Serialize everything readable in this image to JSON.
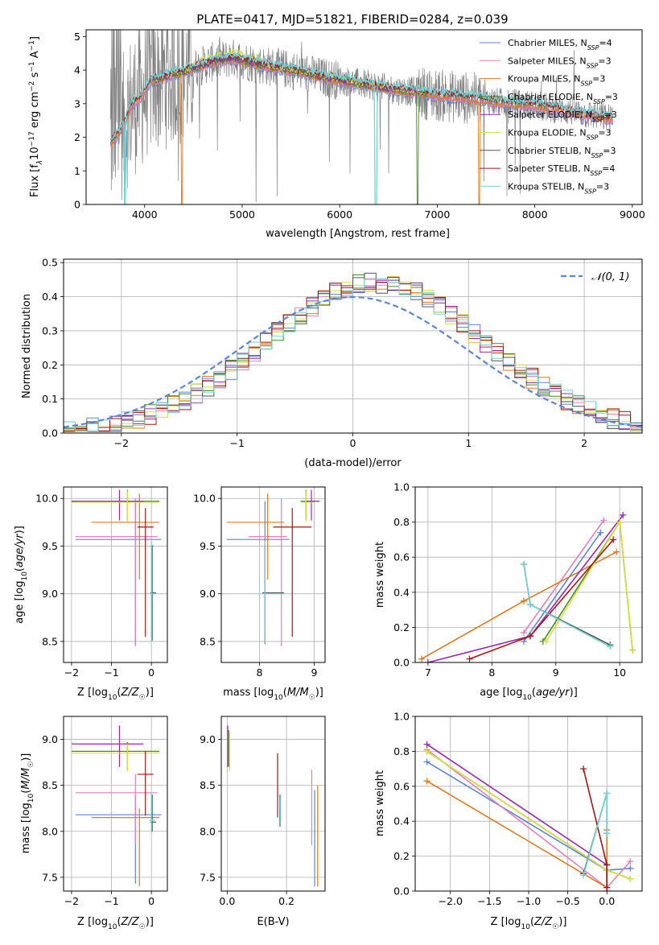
{
  "title": "PLATE=0417, MJD=51821, FIBERID=0284, z=0.039",
  "colors": {
    "Chabrier MILES": "#5b86d6",
    "Salpeter MILES": "#e57fbf",
    "Kroupa MILES": "#de7a1f",
    "Chabrier ELODIE": "#3f8f22",
    "Salpeter ELODIE": "#9b25b3",
    "Kroupa ELODIE": "#d8e03c",
    "Chabrier STELIB": "#555555",
    "Salpeter STELIB": "#a81515",
    "Kroupa STELIB": "#72d4d8",
    "data": "#808080",
    "gaussian": "#5b86d6"
  },
  "chart_data": [
    {
      "id": "spectrum",
      "type": "line",
      "xlabel": "wavelength [Angstrom, rest frame]",
      "ylabel_parts": [
        "Flux [f",
        "λ",
        "10",
        "−17",
        " erg cm",
        "−2",
        " s",
        "−1",
        " A",
        "−1",
        "]"
      ],
      "xlim": [
        3400,
        9100
      ],
      "ylim": [
        0,
        5.2
      ],
      "xticks": [
        4000,
        5000,
        6000,
        7000,
        8000,
        9000
      ],
      "yticks": [
        0,
        1,
        2,
        3,
        4,
        5
      ],
      "continuum": {
        "x": [
          3650,
          3700,
          3750,
          3800,
          3850,
          3900,
          3950,
          4000,
          4050,
          4100,
          4150,
          4200,
          4300,
          4400,
          4500,
          4600,
          4700,
          4800,
          4900,
          5000,
          5200,
          5400,
          5600,
          5800,
          6000,
          6200,
          6400,
          6600,
          6800,
          7000,
          7200,
          7400,
          7600,
          7800,
          8000,
          8200,
          8400,
          8600,
          8800
        ],
        "y": [
          1.85,
          2.0,
          2.2,
          2.45,
          2.9,
          3.05,
          3.15,
          3.4,
          3.65,
          3.7,
          3.75,
          3.8,
          3.9,
          3.95,
          4.05,
          4.15,
          4.25,
          4.3,
          4.35,
          4.3,
          4.15,
          4.05,
          3.95,
          3.8,
          3.7,
          3.6,
          3.5,
          3.4,
          3.35,
          3.25,
          3.2,
          3.15,
          3.05,
          3.0,
          2.95,
          2.85,
          2.75,
          2.65,
          2.55
        ]
      },
      "legend": [
        {
          "label": "Chabrier MILES, N",
          "sub": "SSP",
          "n": "=4"
        },
        {
          "label": "Salpeter MILES, N",
          "sub": "SSP",
          "n": "=3"
        },
        {
          "label": "Kroupa MILES, N",
          "sub": "SSP",
          "n": "=3"
        },
        {
          "label": "Chabrier ELODIE, N",
          "sub": "SSP",
          "n": "=3"
        },
        {
          "label": "Salpeter ELODIE, N",
          "sub": "SSP",
          "n": "=3"
        },
        {
          "label": "Kroupa ELODIE, N",
          "sub": "SSP",
          "n": "=3"
        },
        {
          "label": "Chabrier STELIB, N",
          "sub": "SSP",
          "n": "=3"
        },
        {
          "label": "Salpeter STELIB, N",
          "sub": "SSP",
          "n": "=4"
        },
        {
          "label": "Kroupa STELIB, N",
          "sub": "SSP",
          "n": "=3"
        }
      ],
      "legend_position": "upper-right"
    },
    {
      "id": "residuals",
      "type": "histogram",
      "xlabel": "(data-model)/error",
      "ylabel": "Normed distribution",
      "xlim": [
        -2.5,
        2.5
      ],
      "ylim": [
        0,
        0.51
      ],
      "xticks": [
        -2,
        -1,
        0,
        1,
        2
      ],
      "yticks": [
        0.0,
        0.1,
        0.2,
        0.3,
        0.4,
        0.5
      ],
      "bin_width": 0.1,
      "gaussian_label": "𝒩(0, 1)",
      "legend_position": "upper-right",
      "grid": true
    },
    {
      "id": "age_vs_Z",
      "type": "errorbar",
      "xlabel": "Z [log10(Z/Z☉)]",
      "ylabel": "age [log10(age/yr)]",
      "xlim": [
        -2.2,
        0.4
      ],
      "ylim": [
        8.28,
        10.12
      ],
      "xticks": [
        -2,
        -1,
        0
      ],
      "yticks": [
        8.5,
        9.0,
        9.5,
        10.0
      ]
    },
    {
      "id": "age_vs_mass",
      "type": "errorbar",
      "xlabel": "mass [log10(M/M☉)]",
      "ylabel": "",
      "xlim": [
        7.3,
        9.2
      ],
      "ylim": [
        8.28,
        10.12
      ],
      "xticks": [
        8,
        9
      ],
      "yticks": [
        8.5,
        9.0,
        9.5,
        10.0
      ]
    },
    {
      "id": "massweight_vs_age",
      "type": "line",
      "xlabel": "age [log10(age/yr)]",
      "ylabel": "mass weight",
      "xlim": [
        6.8,
        10.35
      ],
      "ylim": [
        0,
        1.0
      ],
      "xticks": [
        7,
        8,
        9,
        10
      ],
      "yticks": [
        0.0,
        0.2,
        0.4,
        0.6,
        0.8,
        1.0
      ],
      "series": [
        {
          "name": "Chabrier MILES",
          "x": [
            8.5,
            9.7
          ],
          "y": [
            0.12,
            0.74
          ]
        },
        {
          "name": "Salpeter MILES",
          "x": [
            8.5,
            9.75
          ],
          "y": [
            0.17,
            0.81
          ]
        },
        {
          "name": "Kroupa MILES",
          "x": [
            6.9,
            8.5,
            9.95
          ],
          "y": [
            0.02,
            0.35,
            0.63
          ]
        },
        {
          "name": "Chabrier ELODIE",
          "x": [
            8.8,
            10.0,
            10.2
          ],
          "y": [
            0.12,
            0.8,
            0.07
          ]
        },
        {
          "name": "Salpeter ELODIE",
          "x": [
            7.0,
            8.6,
            10.05
          ],
          "y": [
            0.0,
            0.15,
            0.84
          ]
        },
        {
          "name": "Kroupa ELODIE",
          "x": [
            8.85,
            10.0,
            10.2
          ],
          "y": [
            0.12,
            0.8,
            0.07
          ]
        },
        {
          "name": "Chabrier STELIB",
          "x": [
            8.5,
            8.6,
            9.85
          ],
          "y": [
            0.56,
            0.33,
            0.1
          ]
        },
        {
          "name": "Salpeter STELIB",
          "x": [
            7.65,
            8.6,
            9.9
          ],
          "y": [
            0.02,
            0.15,
            0.7
          ]
        },
        {
          "name": "Kroupa STELIB",
          "x": [
            8.5,
            8.6,
            9.85
          ],
          "y": [
            0.56,
            0.33,
            0.09
          ]
        }
      ]
    },
    {
      "id": "mass_vs_Z",
      "type": "errorbar",
      "xlabel": "Z [log10(Z/Z☉)]",
      "ylabel": "mass [log10(M/M☉)]",
      "xlim": [
        -2.2,
        0.4
      ],
      "ylim": [
        7.35,
        9.25
      ],
      "xticks": [
        -2,
        -1,
        0
      ],
      "yticks": [
        7.5,
        8.0,
        8.5,
        9.0
      ]
    },
    {
      "id": "mass_vs_EBV",
      "type": "errorbar",
      "xlabel": "E(B-V)",
      "ylabel": "",
      "xlim": [
        -0.02,
        0.33
      ],
      "ylim": [
        7.35,
        9.25
      ],
      "xticks": [
        0.0,
        0.2
      ],
      "yticks": [
        7.5,
        8.0,
        8.5,
        9.0
      ]
    },
    {
      "id": "massweight_vs_Z",
      "type": "line",
      "xlabel": "Z [log10(Z/Z☉)]",
      "ylabel": "mass weight",
      "xlim": [
        -2.45,
        0.45
      ],
      "ylim": [
        0,
        1.0
      ],
      "xticks": [
        -2.0,
        -1.5,
        -1.0,
        -0.5,
        0.0
      ],
      "yticks": [
        0.0,
        0.2,
        0.4,
        0.6,
        0.8,
        1.0
      ],
      "series": [
        {
          "name": "Chabrier MILES",
          "x": [
            -2.3,
            0.0,
            0.3
          ],
          "y": [
            0.74,
            0.12,
            0.13
          ]
        },
        {
          "name": "Salpeter MILES",
          "x": [
            -2.3,
            0.0,
            0.3
          ],
          "y": [
            0.81,
            0.02,
            0.17
          ]
        },
        {
          "name": "Kroupa MILES",
          "x": [
            -2.3,
            0.0,
            0.0
          ],
          "y": [
            0.63,
            0.02,
            0.35
          ]
        },
        {
          "name": "Chabrier ELODIE",
          "x": [
            -2.3,
            0.0,
            0.3
          ],
          "y": [
            0.8,
            0.12,
            0.07
          ]
        },
        {
          "name": "Salpeter ELODIE",
          "x": [
            -2.3,
            0.0,
            0.0
          ],
          "y": [
            0.84,
            0.15,
            0.0
          ]
        },
        {
          "name": "Kroupa ELODIE",
          "x": [
            -2.3,
            0.0,
            0.3
          ],
          "y": [
            0.8,
            0.12,
            0.07
          ]
        },
        {
          "name": "Chabrier STELIB",
          "x": [
            -0.3,
            0.0,
            0.0
          ],
          "y": [
            0.1,
            0.56,
            0.33
          ]
        },
        {
          "name": "Salpeter STELIB",
          "x": [
            -0.3,
            0.0,
            0.0
          ],
          "y": [
            0.7,
            0.15,
            0.02
          ]
        },
        {
          "name": "Kroupa STELIB",
          "x": [
            -0.3,
            0.0,
            0.0
          ],
          "y": [
            0.09,
            0.56,
            0.33
          ]
        }
      ]
    }
  ]
}
